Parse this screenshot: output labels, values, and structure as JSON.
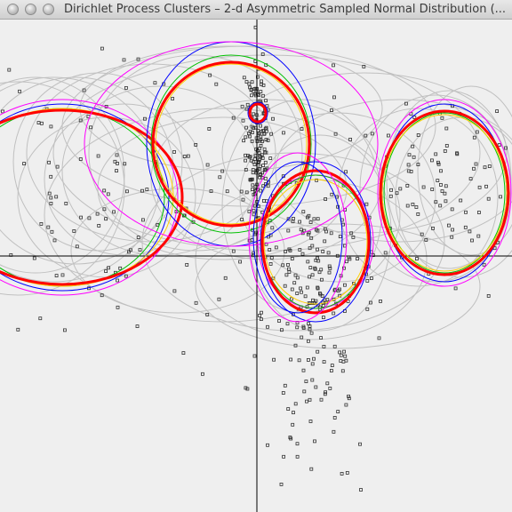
{
  "window": {
    "title": "Dirichlet Process Clusters – 2-d Asymmetric Sampled Normal Distribution (..."
  },
  "colors": {
    "background": "#efefef",
    "axes": "#000000",
    "points": "#333333",
    "model_colors": [
      "#c0c0c0",
      "#ff00ff",
      "#0000ff",
      "#00c000",
      "#ffd000",
      "#ff0000"
    ]
  },
  "icons": {
    "close": "close-button-circle",
    "minimize": "minimize-button-circle",
    "maximize": "zoom-button-circle"
  }
}
